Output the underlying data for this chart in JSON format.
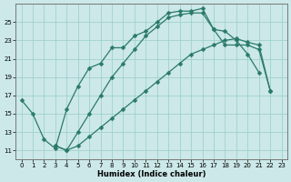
{
  "bg_color": "#cce8e8",
  "grid_color": "#99cccc",
  "line_color": "#2a7a6a",
  "xlim": [
    -0.5,
    23.5
  ],
  "ylim": [
    10.0,
    27.0
  ],
  "xlabel": "Humidex (Indice chaleur)",
  "xticks": [
    0,
    1,
    2,
    3,
    4,
    5,
    6,
    7,
    8,
    9,
    10,
    11,
    12,
    13,
    14,
    15,
    16,
    17,
    18,
    19,
    20,
    21,
    22,
    23
  ],
  "yticks": [
    11,
    13,
    15,
    17,
    19,
    21,
    23,
    25
  ],
  "curve1_x": [
    0,
    1,
    2,
    3,
    4,
    5,
    6,
    7,
    8,
    9,
    10,
    11,
    12,
    13,
    14,
    15,
    16,
    17,
    18,
    19,
    20,
    21
  ],
  "curve1_y": [
    16.5,
    15.0,
    12.2,
    11.2,
    15.5,
    18.0,
    20.0,
    20.5,
    22.2,
    22.2,
    23.5,
    24.0,
    25.0,
    26.0,
    26.2,
    26.2,
    26.5,
    24.2,
    24.0,
    23.0,
    21.5,
    19.5
  ],
  "curve2_x": [
    3,
    4,
    5,
    6,
    7,
    8,
    9,
    10,
    11,
    12,
    13,
    14,
    15,
    16,
    17,
    18,
    19,
    20,
    21,
    22
  ],
  "curve2_y": [
    11.5,
    11.0,
    13.0,
    15.0,
    17.0,
    19.0,
    20.5,
    22.0,
    23.5,
    24.5,
    25.5,
    25.8,
    26.0,
    26.0,
    24.2,
    22.5,
    22.5,
    22.5,
    22.0,
    17.5
  ],
  "curve3_x": [
    3,
    4,
    5,
    6,
    7,
    8,
    9,
    10,
    11,
    12,
    13,
    14,
    15,
    16,
    17,
    18,
    19,
    20,
    21,
    22
  ],
  "curve3_y": [
    11.5,
    11.0,
    11.5,
    12.5,
    13.5,
    14.5,
    15.5,
    16.5,
    17.5,
    18.5,
    19.5,
    20.5,
    21.5,
    22.0,
    22.5,
    23.0,
    23.2,
    22.8,
    22.5,
    17.5
  ]
}
